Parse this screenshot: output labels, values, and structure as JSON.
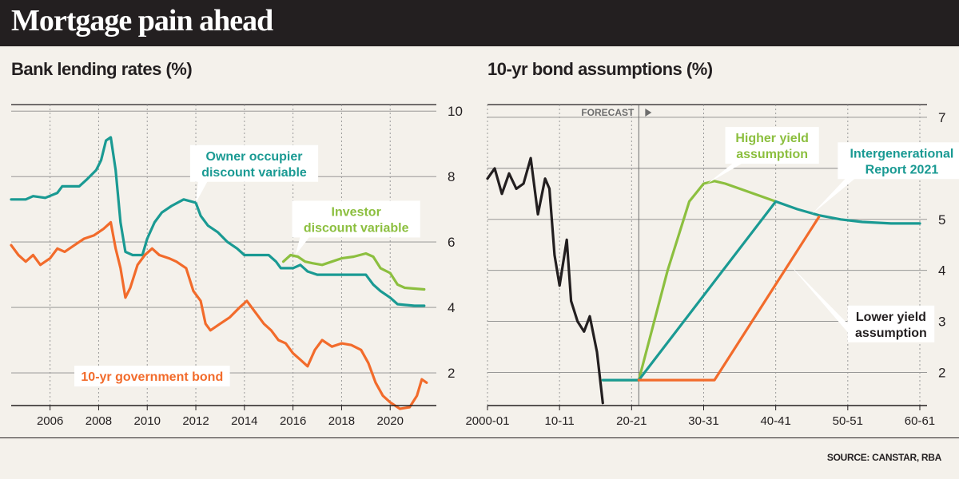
{
  "header": {
    "title": "Mortgage pain ahead"
  },
  "source": "SOURCE: CANSTAR, RBA",
  "colors": {
    "teal": "#1a9a93",
    "green": "#8cbf3f",
    "orange": "#f26b2b",
    "black": "#231f20"
  },
  "chart_data": [
    {
      "type": "line",
      "title": "Bank lending rates (%)",
      "xlabel": "",
      "ylabel": "",
      "xlim": [
        2004.4,
        2021.9
      ],
      "ylim": [
        1.0,
        10.2
      ],
      "x_ticks": [
        2006,
        2008,
        2010,
        2012,
        2014,
        2016,
        2018,
        2020
      ],
      "x_tick_labels": [
        "2006",
        "2008",
        "2010",
        "2012",
        "2014",
        "2016",
        "2018",
        "2020"
      ],
      "y_ticks": [
        2,
        4,
        6,
        8,
        10
      ],
      "y_tick_labels": [
        "2",
        "4",
        "6",
        "8",
        "10"
      ],
      "grid": "vertical and horizontal",
      "series": [
        {
          "name": "Owner occupier discount variable",
          "color": "#1a9a93",
          "points": [
            [
              2004.4,
              7.3
            ],
            [
              2005.0,
              7.3
            ],
            [
              2005.3,
              7.4
            ],
            [
              2005.8,
              7.35
            ],
            [
              2006.3,
              7.5
            ],
            [
              2006.5,
              7.7
            ],
            [
              2007.2,
              7.7
            ],
            [
              2007.5,
              7.9
            ],
            [
              2007.9,
              8.2
            ],
            [
              2008.1,
              8.5
            ],
            [
              2008.3,
              9.1
            ],
            [
              2008.5,
              9.2
            ],
            [
              2008.7,
              8.2
            ],
            [
              2008.9,
              6.6
            ],
            [
              2009.1,
              5.7
            ],
            [
              2009.4,
              5.6
            ],
            [
              2009.8,
              5.6
            ],
            [
              2010.0,
              6.1
            ],
            [
              2010.3,
              6.6
            ],
            [
              2010.6,
              6.9
            ],
            [
              2011.0,
              7.1
            ],
            [
              2011.5,
              7.3
            ],
            [
              2012.0,
              7.2
            ],
            [
              2012.2,
              6.8
            ],
            [
              2012.5,
              6.5
            ],
            [
              2012.9,
              6.3
            ],
            [
              2013.3,
              6.0
            ],
            [
              2013.7,
              5.8
            ],
            [
              2014.0,
              5.6
            ],
            [
              2015.0,
              5.6
            ],
            [
              2015.3,
              5.4
            ],
            [
              2015.5,
              5.2
            ],
            [
              2016.0,
              5.2
            ],
            [
              2016.3,
              5.3
            ],
            [
              2016.6,
              5.1
            ],
            [
              2017.0,
              5.0
            ],
            [
              2018.5,
              5.0
            ],
            [
              2019.0,
              5.0
            ],
            [
              2019.3,
              4.7
            ],
            [
              2019.6,
              4.5
            ],
            [
              2020.0,
              4.3
            ],
            [
              2020.3,
              4.1
            ],
            [
              2021.0,
              4.05
            ],
            [
              2021.4,
              4.05
            ]
          ]
        },
        {
          "name": "Investor discount variable",
          "color": "#8cbf3f",
          "points": [
            [
              2015.6,
              5.4
            ],
            [
              2015.9,
              5.6
            ],
            [
              2016.2,
              5.55
            ],
            [
              2016.5,
              5.4
            ],
            [
              2016.8,
              5.35
            ],
            [
              2017.2,
              5.3
            ],
            [
              2017.6,
              5.4
            ],
            [
              2018.0,
              5.5
            ],
            [
              2018.5,
              5.55
            ],
            [
              2019.0,
              5.65
            ],
            [
              2019.3,
              5.55
            ],
            [
              2019.6,
              5.2
            ],
            [
              2020.0,
              5.05
            ],
            [
              2020.3,
              4.7
            ],
            [
              2020.6,
              4.6
            ],
            [
              2021.4,
              4.55
            ]
          ]
        },
        {
          "name": "10-yr government bond",
          "color": "#f26b2b",
          "points": [
            [
              2004.4,
              5.9
            ],
            [
              2004.7,
              5.6
            ],
            [
              2005.0,
              5.4
            ],
            [
              2005.3,
              5.6
            ],
            [
              2005.6,
              5.3
            ],
            [
              2006.0,
              5.5
            ],
            [
              2006.3,
              5.8
            ],
            [
              2006.6,
              5.7
            ],
            [
              2007.0,
              5.9
            ],
            [
              2007.4,
              6.1
            ],
            [
              2007.8,
              6.2
            ],
            [
              2008.2,
              6.4
            ],
            [
              2008.5,
              6.6
            ],
            [
              2008.7,
              5.8
            ],
            [
              2008.9,
              5.2
            ],
            [
              2009.1,
              4.3
            ],
            [
              2009.3,
              4.6
            ],
            [
              2009.6,
              5.3
            ],
            [
              2009.9,
              5.6
            ],
            [
              2010.2,
              5.8
            ],
            [
              2010.5,
              5.6
            ],
            [
              2010.9,
              5.5
            ],
            [
              2011.2,
              5.4
            ],
            [
              2011.6,
              5.2
            ],
            [
              2011.9,
              4.5
            ],
            [
              2012.2,
              4.2
            ],
            [
              2012.4,
              3.5
            ],
            [
              2012.6,
              3.3
            ],
            [
              2013.0,
              3.5
            ],
            [
              2013.4,
              3.7
            ],
            [
              2013.8,
              4.0
            ],
            [
              2014.1,
              4.2
            ],
            [
              2014.4,
              3.9
            ],
            [
              2014.8,
              3.5
            ],
            [
              2015.1,
              3.3
            ],
            [
              2015.4,
              3.0
            ],
            [
              2015.7,
              2.9
            ],
            [
              2016.0,
              2.6
            ],
            [
              2016.3,
              2.4
            ],
            [
              2016.6,
              2.2
            ],
            [
              2016.9,
              2.7
            ],
            [
              2017.2,
              3.0
            ],
            [
              2017.6,
              2.8
            ],
            [
              2018.0,
              2.9
            ],
            [
              2018.4,
              2.85
            ],
            [
              2018.8,
              2.7
            ],
            [
              2019.1,
              2.3
            ],
            [
              2019.4,
              1.7
            ],
            [
              2019.7,
              1.3
            ],
            [
              2020.0,
              1.1
            ],
            [
              2020.4,
              0.9
            ],
            [
              2020.8,
              0.95
            ],
            [
              2021.1,
              1.3
            ],
            [
              2021.3,
              1.8
            ],
            [
              2021.5,
              1.7
            ]
          ]
        }
      ],
      "annotations": [
        {
          "lines": [
            "Owner occupier",
            "discount variable"
          ],
          "color": "#1a9a93",
          "series": 0,
          "x": 2014.4,
          "y": 8.4,
          "pointer": [
            2012.0,
            7.2
          ]
        },
        {
          "lines": [
            "Investor",
            "discount variable"
          ],
          "color": "#8cbf3f",
          "series": 1,
          "x": 2018.6,
          "y": 6.7,
          "pointer": [
            2016.1,
            5.6
          ]
        },
        {
          "lines": [
            "10-yr government bond"
          ],
          "color": "#f26b2b",
          "series": 2,
          "x": 2010.2,
          "y": 1.9,
          "pointer": null
        }
      ]
    },
    {
      "type": "line",
      "title": "10-yr bond assumptions (%)",
      "xlabel": "",
      "ylabel": "",
      "xlim": [
        0,
        61
      ],
      "ylim": [
        1.35,
        7.25
      ],
      "x_ticks": [
        0,
        10,
        20,
        30,
        40,
        50,
        60
      ],
      "x_tick_labels": [
        "2000-01",
        "10-11",
        "20-21",
        "30-31",
        "40-41",
        "50-51",
        "60-61"
      ],
      "y_ticks": [
        2,
        3,
        4,
        5,
        6,
        7
      ],
      "y_tick_labels": [
        "2",
        "3",
        "4",
        "5",
        "6",
        "7"
      ],
      "grid": "vertical and horizontal",
      "forecast_label": "FORECAST",
      "forecast_x": 21,
      "series": [
        {
          "name": "",
          "color": "#231f20",
          "points": [
            [
              0,
              5.8
            ],
            [
              1,
              6.0
            ],
            [
              2,
              5.5
            ],
            [
              3,
              5.9
            ],
            [
              4,
              5.6
            ],
            [
              5,
              5.7
            ],
            [
              6,
              6.2
            ],
            [
              7,
              5.1
            ],
            [
              8,
              5.8
            ],
            [
              8.6,
              5.6
            ],
            [
              9.3,
              4.3
            ],
            [
              10,
              3.7
            ],
            [
              11,
              4.6
            ],
            [
              11.6,
              3.4
            ],
            [
              12.5,
              3.0
            ],
            [
              13.4,
              2.8
            ],
            [
              14.2,
              3.1
            ],
            [
              15.2,
              2.4
            ],
            [
              16.0,
              1.4
            ]
          ]
        },
        {
          "name": "Higher yield assumption",
          "color": "#8cbf3f",
          "points": [
            [
              16.0,
              1.85
            ],
            [
              21.0,
              1.85
            ],
            [
              25.0,
              4.0
            ],
            [
              28.0,
              5.35
            ],
            [
              30.0,
              5.7
            ],
            [
              31.5,
              5.75
            ],
            [
              33.0,
              5.7
            ],
            [
              35.0,
              5.6
            ],
            [
              37.0,
              5.5
            ],
            [
              40.0,
              5.35
            ]
          ]
        },
        {
          "name": "Intergenerational Report 2021",
          "color": "#1a9a93",
          "points": [
            [
              16.0,
              1.85
            ],
            [
              21.0,
              1.85
            ],
            [
              40.0,
              5.35
            ],
            [
              43.0,
              5.2
            ],
            [
              46.0,
              5.08
            ],
            [
              49.0,
              5.0
            ],
            [
              52.0,
              4.95
            ],
            [
              56.0,
              4.92
            ],
            [
              60.0,
              4.92
            ]
          ]
        },
        {
          "name": "Lower yield assumption",
          "color": "#f26b2b",
          "points": [
            [
              21.0,
              1.85
            ],
            [
              31.5,
              1.85
            ],
            [
              46.0,
              5.05
            ]
          ]
        }
      ],
      "annotations": [
        {
          "lines": [
            "Higher yield",
            "assumption"
          ],
          "color": "#8cbf3f",
          "series": 1,
          "x": 39.5,
          "y": 6.45,
          "pointer": [
            30.5,
            5.7
          ]
        },
        {
          "lines": [
            "Intergenerational",
            "Report 2021"
          ],
          "color": "#1a9a93",
          "series": 2,
          "x": 57.5,
          "y": 6.15,
          "pointer": [
            45.0,
            5.1
          ]
        },
        {
          "lines": [
            "Lower yield",
            "assumption"
          ],
          "color": "#231f20",
          "series": 3,
          "x": 56.0,
          "y": 2.95,
          "pointer": [
            42.0,
            4.1
          ]
        }
      ]
    }
  ]
}
